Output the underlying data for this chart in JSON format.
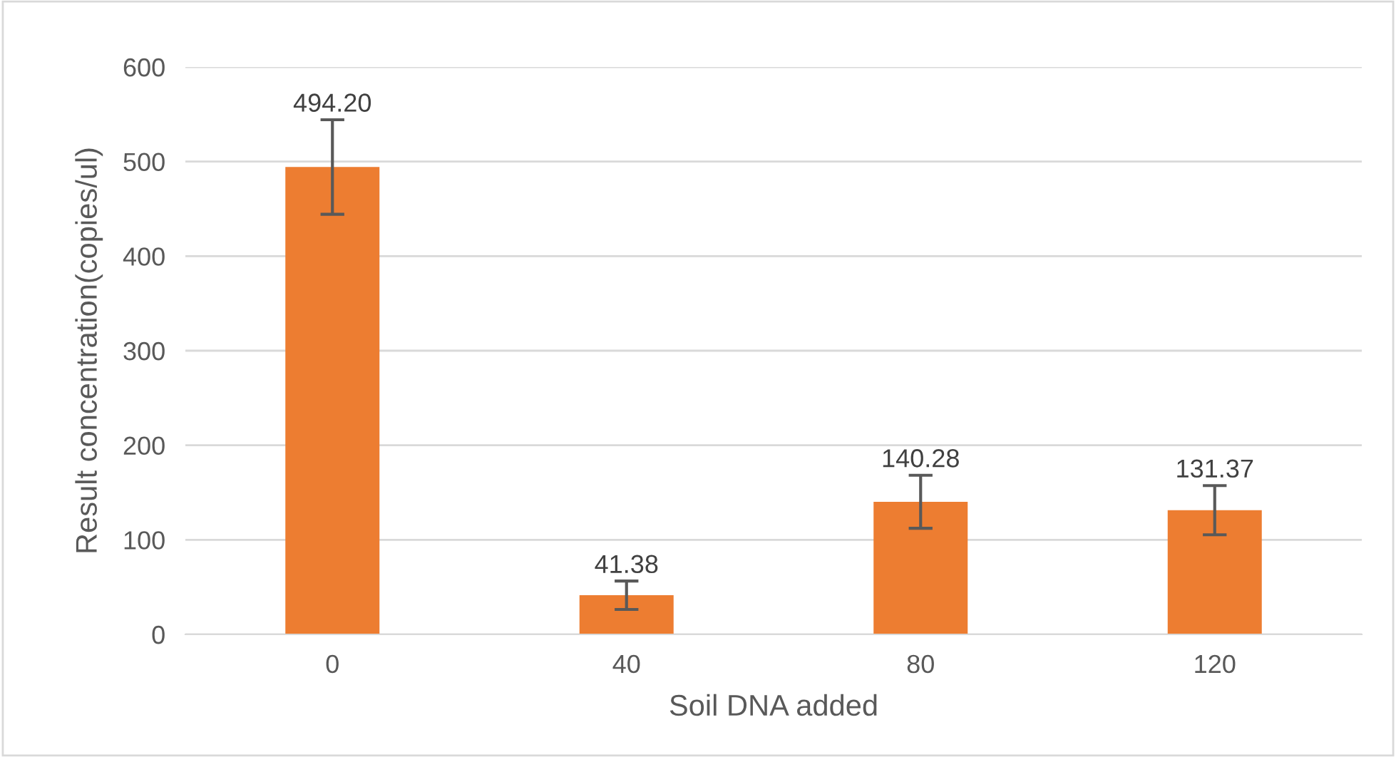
{
  "chart_data": {
    "type": "bar",
    "xlabel": "Soil DNA added",
    "ylabel": "Result concentration(copies/ul)",
    "categories": [
      "0",
      "40",
      "80",
      "120"
    ],
    "values": [
      494.2,
      41.38,
      140.28,
      131.37
    ],
    "errors": [
      50,
      15,
      28,
      26
    ],
    "color": "#ed7d31",
    "ylim": [
      0,
      600
    ],
    "yticks": [
      0,
      100,
      200,
      300,
      400,
      500,
      600
    ],
    "value_labels": [
      "494.20",
      "41.38",
      "140.28",
      "131.37"
    ],
    "grid": "y"
  }
}
